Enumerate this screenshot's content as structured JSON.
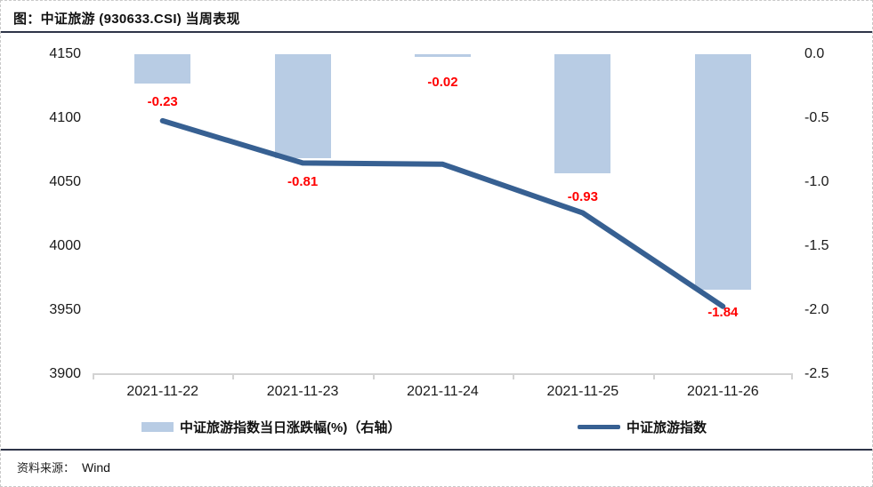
{
  "title": {
    "text": "图：中证旅游 (930633.CSI) 当周表现"
  },
  "footer": {
    "label": "资料来源：",
    "source": "Wind"
  },
  "colors": {
    "bar_fill": "#b8cce4",
    "line": "#376092",
    "data_label": "#ff0000",
    "axis": "#d3d3d3",
    "rule": "#2e3448"
  },
  "chart_data": {
    "type": "bar",
    "subtype": "combo bar+line, dual axis",
    "title": "中证旅游 (930633.CSI) 当周表现",
    "categories": [
      "2021-11-22",
      "2021-11-23",
      "2021-11-24",
      "2021-11-25",
      "2021-11-26"
    ],
    "series": [
      {
        "name": "中证旅游指数当日涨跌幅(%)（右轴）",
        "type": "bar",
        "axis": "right",
        "values": [
          -0.23,
          -0.81,
          -0.02,
          -0.93,
          -1.84
        ],
        "labels": [
          "-0.23",
          "-0.81",
          "-0.02",
          "-0.93",
          "-1.84"
        ]
      },
      {
        "name": "中证旅游指数",
        "type": "line",
        "axis": "left",
        "values": [
          4098,
          4065,
          4064,
          4026,
          3953
        ]
      }
    ],
    "left_axis": {
      "min": 3900,
      "max": 4150,
      "ticks": [
        "4150",
        "4100",
        "4050",
        "4000",
        "3950",
        "3900"
      ]
    },
    "right_axis": {
      "min": -2.5,
      "max": 0.0,
      "ticks": [
        "0.0",
        "-0.5",
        "-1.0",
        "-1.5",
        "-2.0",
        "-2.5"
      ]
    },
    "grid": false,
    "legend_position": "bottom"
  }
}
